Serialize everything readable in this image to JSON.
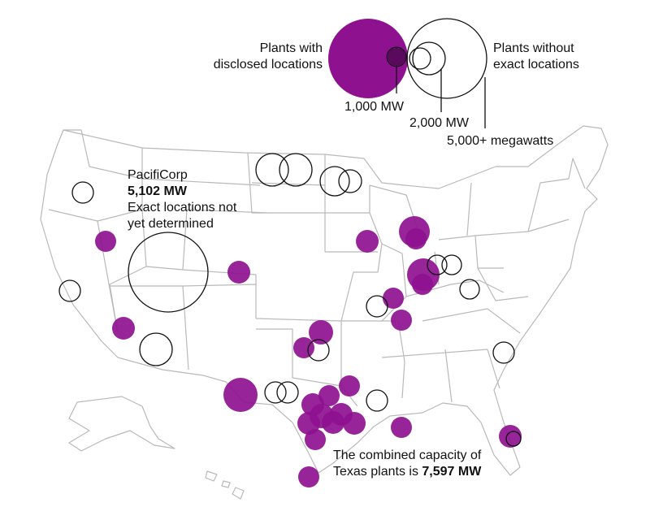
{
  "legend": {
    "disclosed_label_1": "Plants with",
    "disclosed_label_2": "disclosed locations",
    "undisclosed_label_1": "Plants without",
    "undisclosed_label_2": "exact locations",
    "size_1": "1,000 MW",
    "size_2": "2,000 MW",
    "size_3": "5,000+ megawatts",
    "size_values_mw": [
      1000,
      2000,
      5000
    ]
  },
  "annotations": {
    "pacificorp_name": "PacifiCorp",
    "pacificorp_capacity": "5,102 MW",
    "pacificorp_note_1": "Exact locations not",
    "pacificorp_note_2": "yet determined",
    "texas_note_1": "The combined capacity of",
    "texas_note_2_prefix": "Texas plants is ",
    "texas_note_2_value": "7,597 MW"
  },
  "colors": {
    "disclosed": "#8e1190",
    "undisclosed_stroke": "#111111",
    "state_borders": "#b9b9b9"
  },
  "plants": {
    "disclosed_region_counts": {
      "texas": 13,
      "gulf_coast": 2,
      "midwest": 6,
      "mountain_west": 3,
      "oklahoma": 2,
      "florida": 1
    },
    "undisclosed_region_counts": {
      "northern_plains": 4,
      "west": 3,
      "midwest": 3,
      "south": 4,
      "southeast": 2
    }
  }
}
